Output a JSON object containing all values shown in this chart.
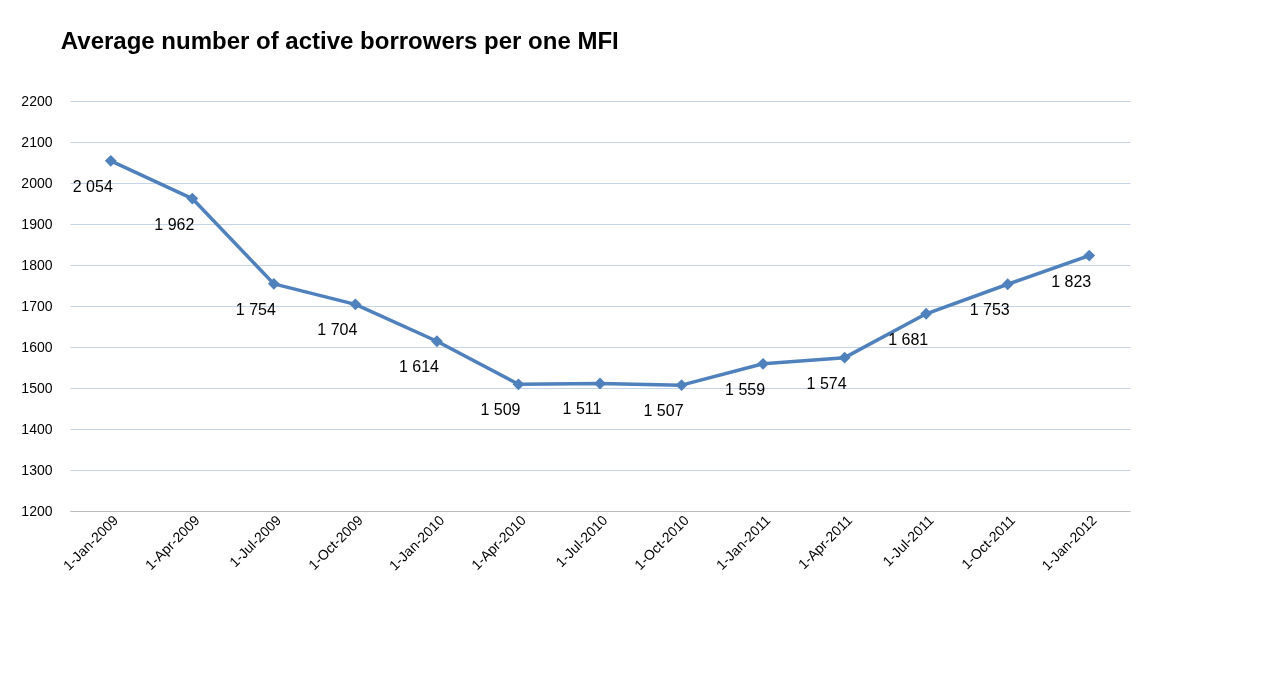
{
  "chart_data": {
    "type": "line",
    "title": "Average number of active borrowers per one MFI",
    "categories": [
      "1-Jan-2009",
      "1-Apr-2009",
      "1-Jul-2009",
      "1-Oct-2009",
      "1-Jan-2010",
      "1-Apr-2010",
      "1-Jul-2010",
      "1-Oct-2010",
      "1-Jan-2011",
      "1-Apr-2011",
      "1-Jul-2011",
      "1-Oct-2011",
      "1-Jan-2012"
    ],
    "series": [
      {
        "color": "#4f81bd",
        "values": [
          2054,
          1962,
          1754,
          1704,
          1614,
          1509,
          1511,
          1507,
          1559,
          1574,
          1681,
          1753,
          1823
        ],
        "value_labels": [
          "2 054",
          "1 962",
          "1 754",
          "1 704",
          "1 614",
          "1 509",
          "1 511",
          "1 507",
          "1 559",
          "1 574",
          "1 681",
          "1 753",
          "1 823"
        ]
      }
    ],
    "ylim": [
      1200,
      2200
    ],
    "yticks": [
      1200,
      1300,
      1400,
      1500,
      1600,
      1700,
      1800,
      1900,
      2000,
      2100,
      2200
    ],
    "grid": "y",
    "marker": "diamond",
    "line_style": "solid",
    "legend": false
  }
}
